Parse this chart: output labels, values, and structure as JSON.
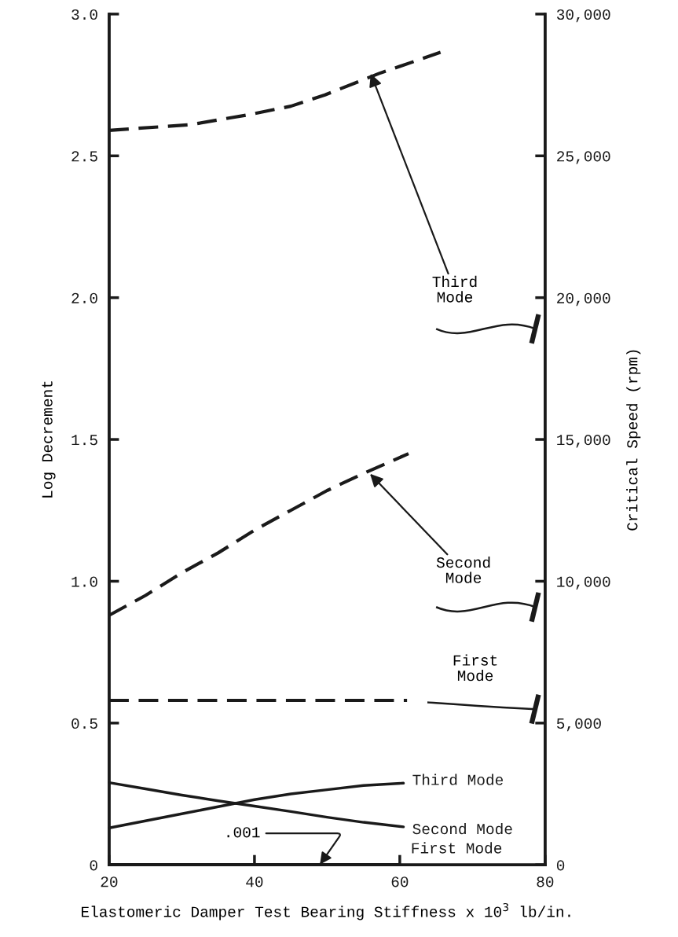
{
  "chart_data": {
    "type": "line",
    "xlabel": "Elastomeric Damper Test Bearing Stiffness x 10$^{3}$ lb/in.",
    "ylabel": "Log Decrement",
    "y2label": "Critical Speed (rpm)",
    "xlim": [
      20,
      80
    ],
    "xticks": [
      20,
      40,
      60,
      80
    ],
    "ylim": [
      0,
      3.0
    ],
    "yticks": [
      {
        "value": 0,
        "label": "0"
      },
      {
        "value": 0.5,
        "label": "0.5"
      },
      {
        "value": 1.0,
        "label": "1.0"
      },
      {
        "value": 1.5,
        "label": "1.5"
      },
      {
        "value": 2.0,
        "label": "2.0"
      },
      {
        "value": 2.5,
        "label": "2.5"
      },
      {
        "value": 3.0,
        "label": "3.0"
      }
    ],
    "y2lim": [
      0,
      30000
    ],
    "y2ticks": [
      {
        "value": 0,
        "label": "0"
      },
      {
        "value": 5000,
        "label": "5,000"
      },
      {
        "value": 10000,
        "label": "10,000"
      },
      {
        "value": 15000,
        "label": "15,000"
      },
      {
        "value": 20000,
        "label": "20,000"
      },
      {
        "value": 25000,
        "label": "25,000"
      },
      {
        "value": 30000,
        "label": "30,000"
      }
    ],
    "grid": false,
    "legend": false,
    "marker": "none",
    "series": [
      {
        "name": "Third Mode",
        "color": "#1a1a1a",
        "line_style": "solid",
        "x": [
          20,
          25,
          30,
          35,
          40,
          45,
          50,
          55,
          60.5
        ],
        "values": [
          0.13,
          0.155,
          0.18,
          0.205,
          0.23,
          0.25,
          0.265,
          0.28,
          0.288
        ]
      },
      {
        "name": "Second Mode",
        "color": "#1a1a1a",
        "line_style": "solid",
        "x": [
          20,
          25,
          30,
          35,
          40,
          45,
          50,
          55,
          60.5
        ],
        "values": [
          0.29,
          0.268,
          0.246,
          0.226,
          0.207,
          0.188,
          0.168,
          0.15,
          0.134
        ]
      },
      {
        "name": "First Mode",
        "color": "#1a1a1a",
        "line_style": "solid",
        "x": [
          20,
          60
        ],
        "values": [
          0.001,
          0.001
        ]
      },
      {
        "axis": "y2",
        "color": "#1a1a1a",
        "line_style": "dashed",
        "x": [
          20,
          61
        ],
        "values": [
          5800,
          5800
        ]
      },
      {
        "axis": "y2",
        "color": "#1a1a1a",
        "line_style": "dashed",
        "x": [
          20,
          25,
          30,
          35,
          40,
          45,
          50,
          55,
          61.2
        ],
        "values": [
          8800,
          9500,
          10300,
          11000,
          11800,
          12500,
          13200,
          13800,
          14500
        ]
      },
      {
        "axis": "y2",
        "color": "#1a1a1a",
        "line_style": "dashed",
        "x": [
          20,
          31.2,
          39.2,
          45,
          49.7,
          57.1,
          65.6
        ],
        "values": [
          25900,
          26100,
          26450,
          26750,
          27150,
          27900,
          28650
        ]
      }
    ],
    "annotations": [
      {
        "text": "Third\nMode",
        "x": 56,
        "y": 2.79
      },
      {
        "text": "Second\nMode",
        "x": 55.9,
        "y": 1.379
      },
      "First\nMode",
      {
        "text": ".001",
        "x": 49,
        "y": 0.001
      }
    ]
  }
}
